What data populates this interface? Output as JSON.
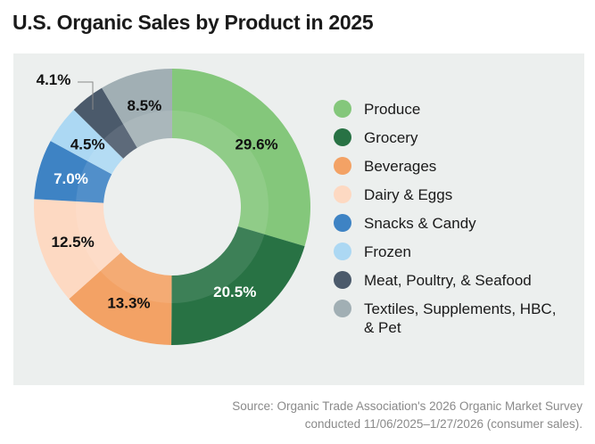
{
  "title": "U.S. Organic Sales by Product in 2025",
  "source_line1": "Source: Organic Trade Association's 2026 Organic Market Survey",
  "source_line2": "conducted 11/06/2025–1/27/2026 (consumer sales).",
  "chart_data": {
    "type": "pie",
    "donut": true,
    "title": "U.S. Organic Sales by Product in 2025",
    "legend_position": "right",
    "categories": [
      "Produce",
      "Grocery",
      "Beverages",
      "Dairy & Eggs",
      "Snacks & Candy",
      "Frozen",
      "Meat, Poultry, & Seafood",
      "Textiles, Supplements, HBC, & Pet"
    ],
    "values": [
      29.6,
      20.5,
      13.3,
      12.5,
      7.0,
      4.5,
      4.1,
      8.5
    ],
    "labels": [
      "29.6%",
      "20.5%",
      "13.3%",
      "12.5%",
      "7.0%",
      "4.5%",
      "4.1%",
      "8.5%"
    ],
    "colors": [
      "#84c77b",
      "#287244",
      "#f3a265",
      "#fdd9c2",
      "#3e83c4",
      "#acd8f3",
      "#4b5a6b",
      "#a1afb4"
    ],
    "label_colors": [
      "#111111",
      "#ffffff",
      "#111111",
      "#111111",
      "#ffffff",
      "#111111",
      "#111111",
      "#111111"
    ]
  }
}
